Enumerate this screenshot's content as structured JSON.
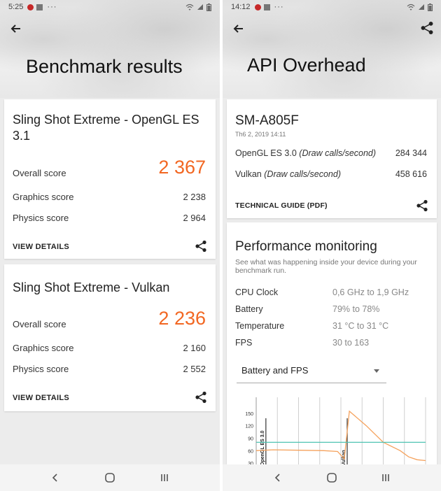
{
  "left": {
    "status_time": "5:25",
    "status_dots": "···",
    "title": "Benchmark results",
    "cards": [
      {
        "title": "Sling Shot Extreme - OpenGL ES 3.1",
        "overall_label": "Overall score",
        "overall_value": "2 367",
        "graphics_label": "Graphics score",
        "graphics_value": "2 238",
        "physics_label": "Physics score",
        "physics_value": "2 964",
        "details_label": "VIEW DETAILS"
      },
      {
        "title": "Sling Shot Extreme - Vulkan",
        "overall_label": "Overall score",
        "overall_value": "2 236",
        "graphics_label": "Graphics score",
        "graphics_value": "2 160",
        "physics_label": "Physics score",
        "physics_value": "2 552",
        "details_label": "VIEW DETAILS"
      }
    ]
  },
  "right": {
    "status_time": "14:12",
    "status_dots": "···",
    "title": "API Overhead",
    "api_card": {
      "device": "SM-A805F",
      "date": "Th6 2, 2019 14:11",
      "rows": [
        {
          "name": "OpenGL ES 3.0",
          "unit": "(Draw calls/second)",
          "value": "284 344"
        },
        {
          "name": "Vulkan",
          "unit": "(Draw calls/second)",
          "value": "458 616"
        }
      ],
      "guide_label": "TECHNICAL GUIDE (PDF)"
    },
    "perf_card": {
      "heading": "Performance monitoring",
      "subtitle": "See what was happening inside your device during your benchmark run.",
      "rows": [
        {
          "label": "CPU Clock",
          "value": "0,6 GHz to 1,9 GHz"
        },
        {
          "label": "Battery",
          "value": "79% to 78%"
        },
        {
          "label": "Temperature",
          "value": "31 °C to 31 °C"
        },
        {
          "label": "FPS",
          "value": "30 to 163"
        }
      ],
      "select_value": "Battery and FPS"
    }
  },
  "chart_data": {
    "type": "line",
    "y_ticks": [
      "150",
      "120",
      "90",
      "60",
      "30"
    ],
    "ylim": [
      20,
      165
    ],
    "markers": [
      "OpenGL ES 3.0",
      "Vulkan"
    ],
    "series": [
      {
        "color": "#f5a25d",
        "points": [
          [
            0,
            60
          ],
          [
            10,
            62
          ],
          [
            25,
            61
          ],
          [
            40,
            60
          ],
          [
            48,
            58
          ],
          [
            52,
            40
          ],
          [
            55,
            155
          ],
          [
            65,
            120
          ],
          [
            75,
            80
          ],
          [
            85,
            60
          ],
          [
            90,
            45
          ],
          [
            95,
            38
          ],
          [
            100,
            36
          ]
        ]
      },
      {
        "color": "#4fc3b2",
        "points": [
          [
            0,
            80
          ],
          [
            100,
            80
          ]
        ]
      }
    ],
    "colors": {
      "accent": "#f26722"
    }
  }
}
